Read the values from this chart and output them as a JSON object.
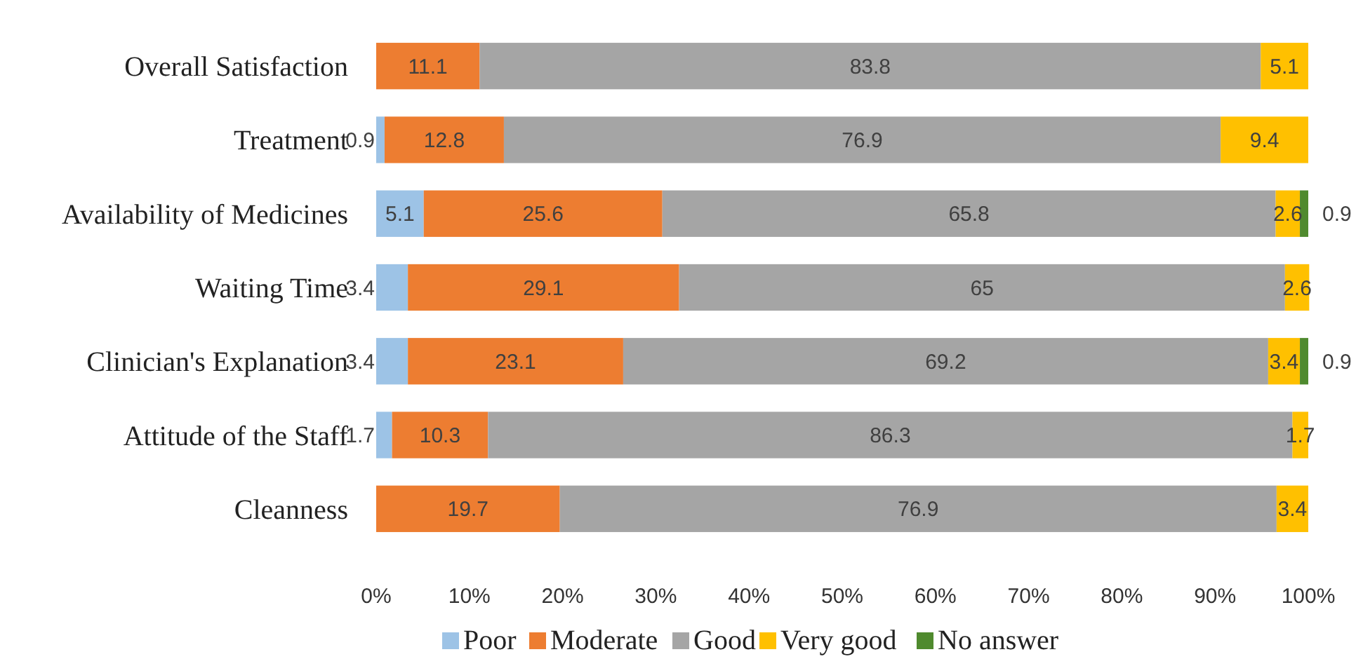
{
  "chart_data": {
    "type": "bar",
    "orientation": "horizontal",
    "stacked": true,
    "data_labels": true,
    "legend": "bottom",
    "grid": false,
    "categories": [
      "Overall Satisfaction",
      "Treatment",
      "Availability of Medicines",
      "Waiting Time",
      "Clinician's Explanation",
      "Attitude of the Staff",
      "Cleanness"
    ],
    "xlim": [
      0,
      100
    ],
    "xticks": [
      {
        "value": 0,
        "label": "0%"
      },
      {
        "value": 10,
        "label": "10%"
      },
      {
        "value": 20,
        "label": "20%"
      },
      {
        "value": 30,
        "label": "30%"
      },
      {
        "value": 40,
        "label": "40%"
      },
      {
        "value": 50,
        "label": "50%"
      },
      {
        "value": 60,
        "label": "60%"
      },
      {
        "value": 70,
        "label": "70%"
      },
      {
        "value": 80,
        "label": "80%"
      },
      {
        "value": 90,
        "label": "90%"
      },
      {
        "value": 100,
        "label": "100%"
      }
    ],
    "series": [
      {
        "name": "Poor",
        "color": "#9dc3e6",
        "values": [
          null,
          0.9,
          5.1,
          3.4,
          3.4,
          1.7,
          null
        ]
      },
      {
        "name": "Moderate",
        "color": "#ed7d31",
        "values": [
          11.1,
          12.8,
          25.6,
          29.1,
          23.1,
          10.3,
          19.7
        ]
      },
      {
        "name": "Good",
        "color": "#a5a5a5",
        "values": [
          83.8,
          76.9,
          65.8,
          65,
          69.2,
          86.3,
          76.9
        ]
      },
      {
        "name": "Very good",
        "color": "#ffc000",
        "values": [
          5.1,
          9.4,
          2.6,
          2.6,
          3.4,
          1.7,
          3.4
        ]
      },
      {
        "name": "No answer",
        "color": "#4f8a2e",
        "values": [
          null,
          null,
          0.9,
          null,
          0.9,
          null,
          null
        ]
      }
    ]
  }
}
